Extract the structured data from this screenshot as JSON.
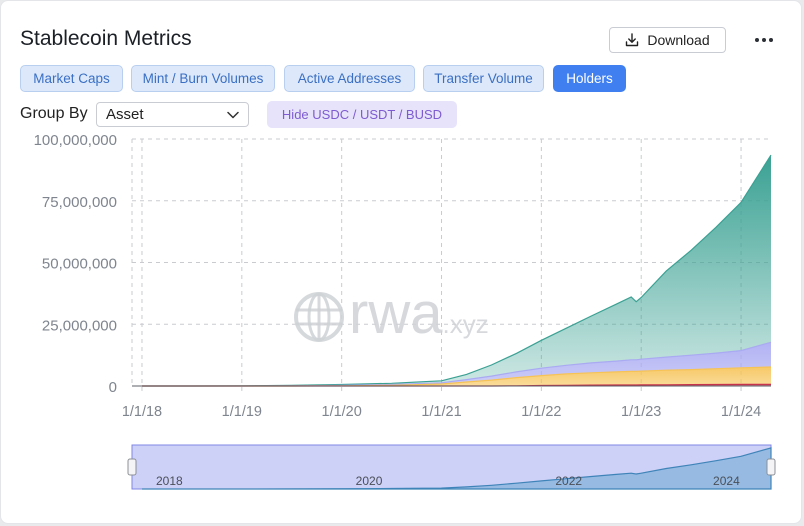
{
  "header": {
    "title": "Stablecoin Metrics",
    "download_label": "Download"
  },
  "tabs": [
    {
      "label": "Market Caps",
      "active": false
    },
    {
      "label": "Mint / Burn Volumes",
      "active": false
    },
    {
      "label": "Active Addresses",
      "active": false
    },
    {
      "label": "Transfer Volume",
      "active": false
    },
    {
      "label": "Holders",
      "active": true
    }
  ],
  "controls": {
    "group_by_label": "Group By",
    "group_by_value": "Asset",
    "hide_button_label": "Hide USDC / USDT / BUSD"
  },
  "watermark": "rwa.xyz",
  "colors": {
    "accent": "#3f7ff0",
    "series_main": "#3aa193",
    "series_purple": "#a9aaf2",
    "series_yellow": "#f6c356",
    "series_red": "#c6314b"
  },
  "chart_data": {
    "type": "area",
    "stacked": true,
    "title": "",
    "xlabel": "",
    "ylabel": "",
    "ylim": [
      0,
      100000000
    ],
    "grid": true,
    "y_ticks": [
      "100,000,000",
      "75,000,000",
      "50,000,000",
      "25,000,000",
      "0"
    ],
    "y_tick_values": [
      100000000,
      75000000,
      50000000,
      25000000,
      0
    ],
    "x_ticks": [
      "1/1/18",
      "1/1/19",
      "1/1/20",
      "1/1/21",
      "1/1/22",
      "1/1/23",
      "1/1/24"
    ],
    "x_tick_years": [
      2018,
      2019,
      2020,
      2021,
      2022,
      2023,
      2024
    ],
    "x_range_years": [
      2017.9,
      2024.3
    ],
    "x": [
      2018.0,
      2018.5,
      2019.0,
      2019.5,
      2020.0,
      2020.5,
      2021.0,
      2021.25,
      2021.5,
      2021.75,
      2022.0,
      2022.25,
      2022.5,
      2022.75,
      2022.9,
      2022.95,
      2023.0,
      2023.25,
      2023.5,
      2023.75,
      2024.0,
      2024.3
    ],
    "series": [
      {
        "color": "#c6314b",
        "values": [
          0,
          0,
          0,
          0,
          0,
          0,
          0,
          0,
          0,
          100000,
          200000,
          300000,
          350000,
          400000,
          420000,
          420000,
          450000,
          500000,
          550000,
          600000,
          650000,
          700000
        ]
      },
      {
        "color": "#f6c356",
        "values": [
          0,
          0,
          0,
          0,
          100000,
          300000,
          800000,
          1600000,
          2400000,
          3300000,
          4000000,
          4600000,
          5000000,
          5300000,
          5500000,
          5500000,
          5600000,
          5900000,
          6100000,
          6400000,
          6700000,
          7000000
        ]
      },
      {
        "color": "#a9aaf2",
        "values": [
          0,
          0,
          0,
          100000,
          200000,
          300000,
          500000,
          1000000,
          1600000,
          2300000,
          3000000,
          3500000,
          4000000,
          4400000,
          4700000,
          4700000,
          4800000,
          5300000,
          5800000,
          6300000,
          7000000,
          10000000
        ]
      },
      {
        "color": "#3aa193",
        "values": [
          0,
          0,
          50000,
          150000,
          300000,
          500000,
          800000,
          2100000,
          4500000,
          7500000,
          11300000,
          15000000,
          19000000,
          23000000,
          25400000,
          23500000,
          25000000,
          34800000,
          42500000,
          51000000,
          60000000,
          75800000
        ]
      }
    ]
  },
  "range_selector": {
    "labels": [
      "2018",
      "2020",
      "2022",
      "2024"
    ],
    "label_years": [
      2018,
      2020,
      2022,
      2024
    ],
    "selected_range_years": [
      2017.9,
      2024.3
    ]
  }
}
